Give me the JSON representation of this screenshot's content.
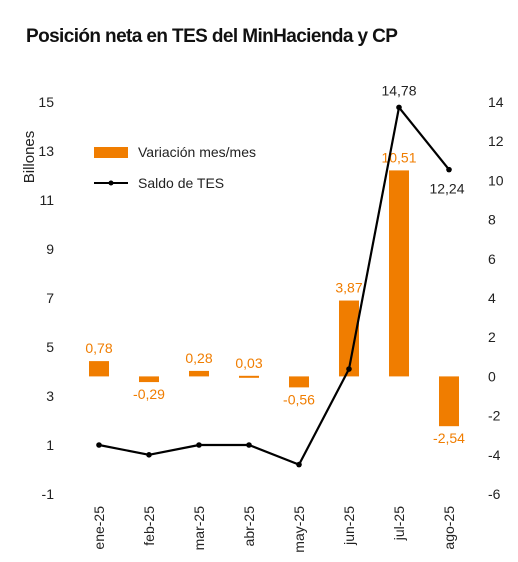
{
  "chart_data": {
    "type": "bar+line",
    "title": "Posición neta en TES del MinHacienda y CP",
    "ylabel_left": "Billones",
    "categories": [
      "ene-25",
      "feb-25",
      "mar-25",
      "abr-25",
      "may-25",
      "jun-25",
      "jul-25",
      "ago-25"
    ],
    "left_axis": {
      "ylim": [
        -1,
        15
      ],
      "ticks": [
        "-1",
        "1",
        "3",
        "5",
        "7",
        "9",
        "11",
        "13",
        "15"
      ]
    },
    "right_axis": {
      "ylim": [
        -6,
        14
      ],
      "ticks": [
        "-6",
        "-4",
        "-2",
        "0",
        "2",
        "4",
        "6",
        "8",
        "10",
        "12",
        "14"
      ]
    },
    "series": [
      {
        "name": "Variación mes/mes",
        "type": "bar",
        "axis": "right",
        "color": "#f07d00",
        "values": [
          0.78,
          -0.29,
          0.28,
          0.03,
          -0.56,
          3.87,
          10.51,
          -2.54
        ],
        "labels": [
          "0,78",
          "-0,29",
          "0,28",
          "0,03",
          "-0,56",
          "3,87",
          "10,51",
          "-2,54"
        ]
      },
      {
        "name": "Saldo de TES",
        "type": "line",
        "axis": "left",
        "color": "#000000",
        "values": [
          1.0,
          0.6,
          1.0,
          1.0,
          0.2,
          4.1,
          14.78,
          12.24
        ],
        "labels": [
          "",
          "",
          "",
          "",
          "",
          "",
          "14,78",
          "12,24"
        ]
      }
    ],
    "legend_position": "top-left",
    "grid": false
  }
}
